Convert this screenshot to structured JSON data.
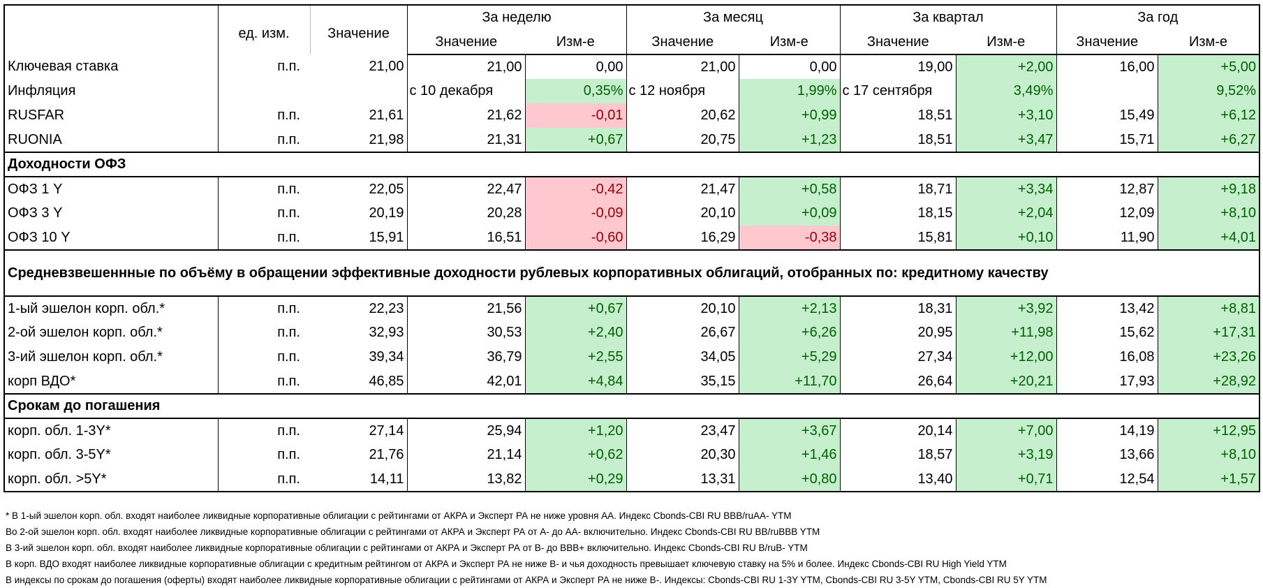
{
  "header": {
    "unit": "ед. изм.",
    "value": "Значение",
    "groups": [
      "За неделю",
      "За месяц",
      "За квартал",
      "За год"
    ],
    "sub_value": "Значение",
    "sub_change": "Изм-е"
  },
  "colors": {
    "positive_fill": "#c6efce",
    "positive_text": "#006100",
    "negative_fill": "#ffc7ce",
    "negative_text": "#9c0006"
  },
  "sections": [
    {
      "title": "",
      "rows": [
        {
          "label": "Ключевая ставка",
          "unit": "п.п.",
          "value": "21,00",
          "periods": [
            {
              "value": "21,00",
              "change": "0,00",
              "fill": "none"
            },
            {
              "value": "21,00",
              "change": "0,00",
              "fill": "none"
            },
            {
              "value": "19,00",
              "change": "+2,00",
              "fill": "green"
            },
            {
              "value": "16,00",
              "change": "+5,00",
              "fill": "green"
            }
          ]
        },
        {
          "label": "Инфляция",
          "unit": "",
          "value": "",
          "periods": [
            {
              "value": "с 10 декабря",
              "change": "0,35%",
              "fill": "green",
              "text_value": true
            },
            {
              "value": "с 12 ноября",
              "change": "1,99%",
              "fill": "green",
              "text_value": true
            },
            {
              "value": "с 17 сентября",
              "change": "3,49%",
              "fill": "green",
              "text_value": true
            },
            {
              "value": "",
              "change": "9,52%",
              "fill": "green"
            }
          ]
        },
        {
          "label": "RUSFAR",
          "unit": "п.п.",
          "value": "21,61",
          "periods": [
            {
              "value": "21,62",
              "change": "-0,01",
              "fill": "red"
            },
            {
              "value": "20,62",
              "change": "+0,99",
              "fill": "green"
            },
            {
              "value": "18,51",
              "change": "+3,10",
              "fill": "green"
            },
            {
              "value": "15,49",
              "change": "+6,12",
              "fill": "green"
            }
          ]
        },
        {
          "label": "RUONIA",
          "unit": "п.п.",
          "value": "21,98",
          "periods": [
            {
              "value": "21,31",
              "change": "+0,67",
              "fill": "green"
            },
            {
              "value": "20,75",
              "change": "+1,23",
              "fill": "green"
            },
            {
              "value": "18,51",
              "change": "+3,47",
              "fill": "green"
            },
            {
              "value": "15,71",
              "change": "+6,27",
              "fill": "green"
            }
          ]
        }
      ]
    },
    {
      "title": "Доходности ОФЗ",
      "rows": [
        {
          "label": "ОФЗ 1 Y",
          "unit": "п.п.",
          "value": "22,05",
          "periods": [
            {
              "value": "22,47",
              "change": "-0,42",
              "fill": "red"
            },
            {
              "value": "21,47",
              "change": "+0,58",
              "fill": "green"
            },
            {
              "value": "18,71",
              "change": "+3,34",
              "fill": "green"
            },
            {
              "value": "12,87",
              "change": "+9,18",
              "fill": "green"
            }
          ]
        },
        {
          "label": "ОФЗ 3 Y",
          "unit": "п.п.",
          "value": "20,19",
          "periods": [
            {
              "value": "20,28",
              "change": "-0,09",
              "fill": "red"
            },
            {
              "value": "20,10",
              "change": "+0,09",
              "fill": "green"
            },
            {
              "value": "18,15",
              "change": "+2,04",
              "fill": "green"
            },
            {
              "value": "12,09",
              "change": "+8,10",
              "fill": "green"
            }
          ]
        },
        {
          "label": "ОФЗ 10 Y",
          "unit": "п.п.",
          "value": "15,91",
          "periods": [
            {
              "value": "16,51",
              "change": "-0,60",
              "fill": "red"
            },
            {
              "value": "16,29",
              "change": "-0,38",
              "fill": "red"
            },
            {
              "value": "15,81",
              "change": "+0,10",
              "fill": "green"
            },
            {
              "value": "11,90",
              "change": "+4,01",
              "fill": "green"
            }
          ]
        }
      ]
    },
    {
      "title": "Средневзвешеннные по объёму в обращении эффективные доходности рублевых корпоративных облигаций, отобранных по: кредитному качеству",
      "rows": [
        {
          "label": "1-ый эшелон корп. обл.*",
          "unit": "п.п.",
          "value": "22,23",
          "periods": [
            {
              "value": "21,56",
              "change": "+0,67",
              "fill": "green"
            },
            {
              "value": "20,10",
              "change": "+2,13",
              "fill": "green"
            },
            {
              "value": "18,31",
              "change": "+3,92",
              "fill": "green"
            },
            {
              "value": "13,42",
              "change": "+8,81",
              "fill": "green"
            }
          ]
        },
        {
          "label": "2-ой эшелон корп. обл.*",
          "unit": "п.п.",
          "value": "32,93",
          "periods": [
            {
              "value": "30,53",
              "change": "+2,40",
              "fill": "green"
            },
            {
              "value": "26,67",
              "change": "+6,26",
              "fill": "green"
            },
            {
              "value": "20,95",
              "change": "+11,98",
              "fill": "green"
            },
            {
              "value": "15,62",
              "change": "+17,31",
              "fill": "green"
            }
          ]
        },
        {
          "label": "3-ий эшелон корп. обл.*",
          "unit": "п.п.",
          "value": "39,34",
          "periods": [
            {
              "value": "36,79",
              "change": "+2,55",
              "fill": "green"
            },
            {
              "value": "34,05",
              "change": "+5,29",
              "fill": "green"
            },
            {
              "value": "27,34",
              "change": "+12,00",
              "fill": "green"
            },
            {
              "value": "16,08",
              "change": "+23,26",
              "fill": "green"
            }
          ]
        },
        {
          "label": "корп ВДО*",
          "unit": "п.п.",
          "value": "46,85",
          "periods": [
            {
              "value": "42,01",
              "change": "+4,84",
              "fill": "green"
            },
            {
              "value": "35,15",
              "change": "+11,70",
              "fill": "green"
            },
            {
              "value": "26,64",
              "change": "+20,21",
              "fill": "green"
            },
            {
              "value": "17,93",
              "change": "+28,92",
              "fill": "green"
            }
          ]
        }
      ]
    },
    {
      "title": "Срокам до погашения",
      "rows": [
        {
          "label": "корп. обл. 1-3Y*",
          "unit": "п.п.",
          "value": "27,14",
          "periods": [
            {
              "value": "25,94",
              "change": "+1,20",
              "fill": "green"
            },
            {
              "value": "23,47",
              "change": "+3,67",
              "fill": "green"
            },
            {
              "value": "20,14",
              "change": "+7,00",
              "fill": "green"
            },
            {
              "value": "14,19",
              "change": "+12,95",
              "fill": "green"
            }
          ]
        },
        {
          "label": "корп. обл. 3-5Y*",
          "unit": "п.п.",
          "value": "21,76",
          "periods": [
            {
              "value": "21,14",
              "change": "+0,62",
              "fill": "green"
            },
            {
              "value": "20,30",
              "change": "+1,46",
              "fill": "green"
            },
            {
              "value": "18,57",
              "change": "+3,19",
              "fill": "green"
            },
            {
              "value": "13,66",
              "change": "+8,10",
              "fill": "green"
            }
          ]
        },
        {
          "label": "корп. обл. >5Y*",
          "unit": "п.п.",
          "value": "14,11",
          "periods": [
            {
              "value": "13,82",
              "change": "+0,29",
              "fill": "green"
            },
            {
              "value": "13,31",
              "change": "+0,80",
              "fill": "green"
            },
            {
              "value": "13,40",
              "change": "+0,71",
              "fill": "green"
            },
            {
              "value": "12,54",
              "change": "+1,57",
              "fill": "green"
            }
          ]
        }
      ]
    }
  ],
  "footnotes": [
    "* В 1-ый эшелон корп. обл. входят наиболее ликвидные корпоративные облигации с рейтингами от АКРА и Эксперт РА не ниже уровня АА. Индекс Cbonds-CBI RU BBB/ruAA- YTM",
    "Во 2-ой эшелон корп. обл. входят наиболее ликвидные корпоративные облигации с рейтингами от АКРА и Эксперт РА от А- до АА- включительно.  Индекс Cbonds-CBI RU BB/ruBBB YTM",
    "В 3-ий эшелон корп. обл. входят наиболее ликвидные корпоративные облигации с рейтингами от АКРА и Эксперт РА от В- до ВВВ+ включительно.  Индекс Cbonds-CBI RU B/ruB- YTM",
    "В корп. ВДО входят наиболее ликвидные корпоративные облигации с кредитным рейтингом от АКРА и Эксперт РА не ниже В- и чья доходность превышает ключевую ставку на 5% и более. Индекс  Cbonds-CBI RU High Yield YTM",
    "В индексы по срокам до погашения (оферты) входят наиболее ликвидные корпоративные облигации с рейтингами от АКРА и Эксперт РА не ниже В-. Индексы:  Cbonds-CBI RU 1-3Y YTM, Cbonds-CBI RU 3-5Y YTM, Cbonds-CBI RU 5Y YTM"
  ]
}
